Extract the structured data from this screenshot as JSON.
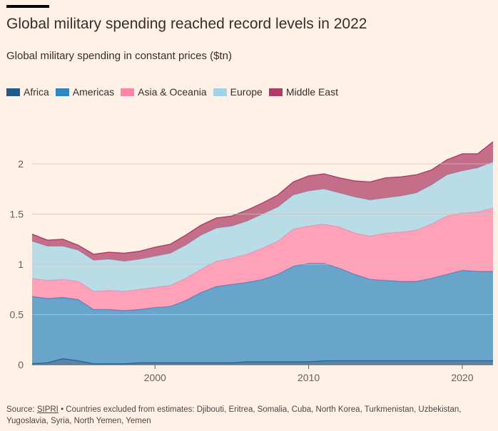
{
  "title": "Global military spending reached record levels in 2022",
  "subtitle": "Global military spending in constant prices ($tn)",
  "legend": [
    {
      "name": "Africa",
      "color": "#1f5a8a"
    },
    {
      "name": "Americas",
      "color": "#2f87c0"
    },
    {
      "name": "Asia & Oceania",
      "color": "#ff84a8"
    },
    {
      "name": "Europe",
      "color": "#9ed4e8"
    },
    {
      "name": "Middle East",
      "color": "#ad3c67"
    }
  ],
  "source": {
    "label": "Source: ",
    "link": "SIPRI",
    "text": " • Countries excluded from estimates: Djibouti, Eritrea, Somalia, Cuba, North Korea, Turkmenistan, Uzbekistan, Yugoslavia, Syria, North Yemen, Yemen"
  },
  "chart_data": {
    "type": "area",
    "stacked": true,
    "x": [
      1992,
      1993,
      1994,
      1995,
      1996,
      1997,
      1998,
      1999,
      2000,
      2001,
      2002,
      2003,
      2004,
      2005,
      2006,
      2007,
      2008,
      2009,
      2010,
      2011,
      2012,
      2013,
      2014,
      2015,
      2016,
      2017,
      2018,
      2019,
      2020,
      2021,
      2022
    ],
    "series": [
      {
        "name": "Africa",
        "color": "#1f5a8a",
        "values": [
          0.01,
          0.02,
          0.06,
          0.04,
          0.01,
          0.01,
          0.01,
          0.02,
          0.02,
          0.02,
          0.02,
          0.02,
          0.02,
          0.02,
          0.03,
          0.03,
          0.03,
          0.03,
          0.03,
          0.04,
          0.04,
          0.04,
          0.04,
          0.04,
          0.04,
          0.04,
          0.04,
          0.04,
          0.04,
          0.04,
          0.04
        ]
      },
      {
        "name": "Americas",
        "color": "#2f87c0",
        "values": [
          0.67,
          0.64,
          0.61,
          0.61,
          0.54,
          0.54,
          0.53,
          0.53,
          0.55,
          0.56,
          0.62,
          0.7,
          0.76,
          0.78,
          0.79,
          0.82,
          0.87,
          0.95,
          0.98,
          0.97,
          0.92,
          0.86,
          0.81,
          0.8,
          0.79,
          0.79,
          0.82,
          0.86,
          0.9,
          0.89,
          0.89
        ]
      },
      {
        "name": "Asia & Oceania",
        "color": "#ff84a8",
        "values": [
          0.18,
          0.18,
          0.18,
          0.18,
          0.18,
          0.19,
          0.19,
          0.2,
          0.2,
          0.21,
          0.22,
          0.23,
          0.25,
          0.26,
          0.28,
          0.31,
          0.33,
          0.37,
          0.37,
          0.39,
          0.41,
          0.41,
          0.43,
          0.47,
          0.49,
          0.51,
          0.54,
          0.58,
          0.57,
          0.59,
          0.63
        ]
      },
      {
        "name": "Europe",
        "color": "#9ed4e8",
        "values": [
          0.37,
          0.34,
          0.33,
          0.31,
          0.31,
          0.31,
          0.3,
          0.3,
          0.31,
          0.32,
          0.33,
          0.34,
          0.33,
          0.32,
          0.33,
          0.34,
          0.34,
          0.34,
          0.35,
          0.35,
          0.34,
          0.36,
          0.36,
          0.35,
          0.36,
          0.37,
          0.39,
          0.41,
          0.42,
          0.44,
          0.46
        ]
      },
      {
        "name": "Middle East",
        "color": "#ad3c67",
        "values": [
          0.07,
          0.06,
          0.07,
          0.05,
          0.06,
          0.07,
          0.08,
          0.08,
          0.09,
          0.09,
          0.1,
          0.1,
          0.1,
          0.1,
          0.11,
          0.11,
          0.12,
          0.13,
          0.15,
          0.15,
          0.15,
          0.16,
          0.18,
          0.2,
          0.19,
          0.18,
          0.15,
          0.15,
          0.17,
          0.14,
          0.2
        ]
      }
    ],
    "yticks": [
      0,
      0.5,
      1,
      1.5,
      2
    ],
    "ytick_labels": [
      "0",
      "0.5",
      "1",
      "1.5",
      "2"
    ],
    "ylim": [
      0,
      2.3
    ],
    "xticks": [
      2000,
      2010,
      2020
    ],
    "xtick_labels": [
      "2000",
      "2010",
      "2020"
    ],
    "xlim": [
      1992,
      2022
    ],
    "grid": true,
    "legend_position": "top"
  }
}
